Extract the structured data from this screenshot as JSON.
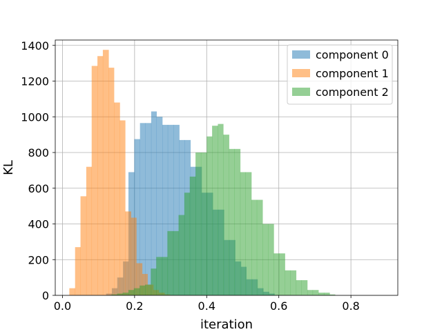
{
  "chart_data": {
    "type": "bar",
    "xlabel": "iteration",
    "ylabel": "KL",
    "xlim": [
      -0.02,
      0.93
    ],
    "ylim": [
      0,
      1430
    ],
    "xticks": [
      0.0,
      0.2,
      0.4,
      0.6,
      0.8
    ],
    "xtick_labels": [
      "0.0",
      "0.2",
      "0.4",
      "0.6",
      "0.8"
    ],
    "yticks": [
      0,
      200,
      400,
      600,
      800,
      1000,
      1200,
      1400
    ],
    "ytick_labels": [
      "0",
      "200",
      "400",
      "600",
      "800",
      "1000",
      "1200",
      "1400"
    ],
    "grid": true,
    "legend_position": "top-right",
    "series": [
      {
        "name": "component 0",
        "color": "#1f77b4",
        "alpha": 0.5,
        "bins": [
          [
            0.121,
            0.137,
            10
          ],
          [
            0.137,
            0.152,
            40
          ],
          [
            0.152,
            0.168,
            100
          ],
          [
            0.168,
            0.183,
            190
          ],
          [
            0.183,
            0.199,
            690
          ],
          [
            0.199,
            0.215,
            875
          ],
          [
            0.215,
            0.23,
            965
          ],
          [
            0.23,
            0.246,
            965
          ],
          [
            0.246,
            0.261,
            1030
          ],
          [
            0.261,
            0.277,
            1000
          ],
          [
            0.277,
            0.292,
            955
          ],
          [
            0.292,
            0.308,
            955
          ],
          [
            0.308,
            0.324,
            955
          ],
          [
            0.324,
            0.339,
            870
          ],
          [
            0.339,
            0.355,
            870
          ],
          [
            0.355,
            0.37,
            720
          ],
          [
            0.37,
            0.386,
            720
          ],
          [
            0.386,
            0.401,
            575
          ],
          [
            0.401,
            0.417,
            575
          ],
          [
            0.417,
            0.432,
            480
          ],
          [
            0.432,
            0.448,
            480
          ],
          [
            0.448,
            0.464,
            310
          ],
          [
            0.464,
            0.479,
            310
          ],
          [
            0.479,
            0.495,
            190
          ],
          [
            0.495,
            0.51,
            160
          ],
          [
            0.51,
            0.526,
            90
          ],
          [
            0.526,
            0.541,
            90
          ],
          [
            0.541,
            0.557,
            40
          ],
          [
            0.557,
            0.573,
            20
          ],
          [
            0.573,
            0.588,
            10
          ]
        ]
      },
      {
        "name": "component 1",
        "color": "#ff7f0e",
        "alpha": 0.5,
        "bins": [
          [
            0.019,
            0.035,
            40
          ],
          [
            0.035,
            0.05,
            270
          ],
          [
            0.05,
            0.066,
            555
          ],
          [
            0.066,
            0.081,
            720
          ],
          [
            0.081,
            0.097,
            1285
          ],
          [
            0.097,
            0.112,
            1340
          ],
          [
            0.112,
            0.128,
            1375
          ],
          [
            0.128,
            0.143,
            1275
          ],
          [
            0.143,
            0.159,
            1080
          ],
          [
            0.159,
            0.174,
            980
          ],
          [
            0.174,
            0.19,
            470
          ],
          [
            0.19,
            0.205,
            435
          ],
          [
            0.205,
            0.221,
            180
          ],
          [
            0.221,
            0.236,
            120
          ],
          [
            0.236,
            0.252,
            60
          ],
          [
            0.252,
            0.267,
            30
          ],
          [
            0.267,
            0.283,
            15
          ],
          [
            0.283,
            0.298,
            5
          ]
        ]
      },
      {
        "name": "component 2",
        "color": "#2ca02c",
        "alpha": 0.5,
        "bins": [
          [
            0.136,
            0.152,
            5
          ],
          [
            0.152,
            0.167,
            10
          ],
          [
            0.167,
            0.183,
            15
          ],
          [
            0.183,
            0.198,
            30
          ],
          [
            0.198,
            0.214,
            40
          ],
          [
            0.214,
            0.229,
            55
          ],
          [
            0.229,
            0.245,
            60
          ],
          [
            0.245,
            0.26,
            150
          ],
          [
            0.26,
            0.276,
            215
          ],
          [
            0.276,
            0.291,
            215
          ],
          [
            0.291,
            0.307,
            360
          ],
          [
            0.307,
            0.322,
            360
          ],
          [
            0.322,
            0.338,
            450
          ],
          [
            0.338,
            0.353,
            575
          ],
          [
            0.353,
            0.369,
            665
          ],
          [
            0.369,
            0.384,
            800
          ],
          [
            0.384,
            0.4,
            800
          ],
          [
            0.4,
            0.415,
            890
          ],
          [
            0.415,
            0.431,
            950
          ],
          [
            0.431,
            0.446,
            960
          ],
          [
            0.446,
            0.462,
            900
          ],
          [
            0.462,
            0.477,
            820
          ],
          [
            0.477,
            0.493,
            820
          ],
          [
            0.493,
            0.508,
            690
          ],
          [
            0.508,
            0.524,
            690
          ],
          [
            0.524,
            0.539,
            535
          ],
          [
            0.539,
            0.555,
            535
          ],
          [
            0.555,
            0.57,
            400
          ],
          [
            0.57,
            0.586,
            400
          ],
          [
            0.586,
            0.601,
            235
          ],
          [
            0.601,
            0.617,
            235
          ],
          [
            0.617,
            0.632,
            140
          ],
          [
            0.632,
            0.648,
            140
          ],
          [
            0.648,
            0.663,
            85
          ],
          [
            0.663,
            0.679,
            85
          ],
          [
            0.679,
            0.694,
            30
          ],
          [
            0.694,
            0.71,
            30
          ],
          [
            0.71,
            0.725,
            15
          ],
          [
            0.725,
            0.741,
            15
          ],
          [
            0.741,
            0.756,
            5
          ]
        ]
      }
    ]
  }
}
